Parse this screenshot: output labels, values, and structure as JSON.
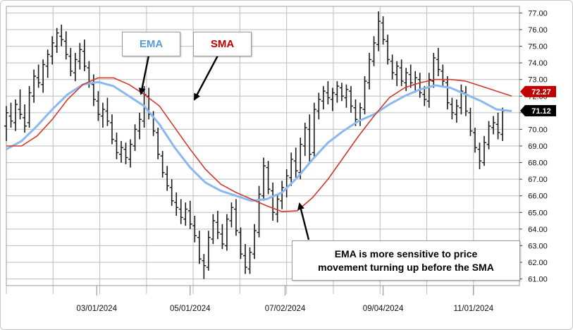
{
  "chart_data": {
    "type": "line",
    "title": "",
    "xlabel": "",
    "ylabel": "",
    "ylim": [
      60.6,
      77.4
    ],
    "y_ticks": [
      "61.00",
      "62.00",
      "63.00",
      "64.00",
      "65.00",
      "66.00",
      "67.00",
      "68.00",
      "69.00",
      "70.00",
      "71.00",
      "72.00",
      "73.00",
      "74.00",
      "75.00",
      "76.00",
      "77.00"
    ],
    "x_tick_labels": [
      "03/01/2024",
      "05/01/2024",
      "07/02/2024",
      "09/04/2024",
      "11/01/2024"
    ],
    "x_tick_days": [
      59,
      120,
      182,
      246,
      305
    ],
    "x_range_days": [
      0,
      335
    ],
    "grid": true,
    "price_bars": [
      [
        0,
        70.2,
        71.4,
        69.3,
        71.0
      ],
      [
        3,
        70.8,
        71.6,
        70.1,
        70.5
      ],
      [
        6,
        70.4,
        71.8,
        69.9,
        71.5
      ],
      [
        9,
        71.2,
        72.4,
        70.6,
        70.9
      ],
      [
        12,
        70.7,
        71.5,
        69.8,
        70.2
      ],
      [
        15,
        70.4,
        72.6,
        70.1,
        72.2
      ],
      [
        18,
        72.0,
        73.6,
        71.6,
        73.2
      ],
      [
        21,
        73.1,
        73.9,
        72.5,
        72.8
      ],
      [
        24,
        72.7,
        74.2,
        72.2,
        73.9
      ],
      [
        27,
        73.8,
        74.8,
        73.1,
        74.5
      ],
      [
        30,
        74.4,
        75.6,
        73.9,
        75.2
      ],
      [
        33,
        75.0,
        76.1,
        74.6,
        75.8
      ],
      [
        36,
        75.6,
        76.3,
        75.0,
        75.4
      ],
      [
        39,
        75.3,
        75.9,
        74.2,
        74.5
      ],
      [
        42,
        74.4,
        74.9,
        73.2,
        73.5
      ],
      [
        45,
        73.4,
        74.6,
        72.9,
        74.2
      ],
      [
        48,
        74.1,
        75.2,
        73.6,
        74.8
      ],
      [
        51,
        74.7,
        75.4,
        73.5,
        73.8
      ],
      [
        54,
        73.7,
        74.1,
        72.5,
        72.8
      ],
      [
        57,
        72.7,
        73.3,
        71.4,
        71.8
      ],
      [
        60,
        71.7,
        72.3,
        70.5,
        70.9
      ],
      [
        63,
        70.8,
        71.6,
        70.1,
        71.2
      ],
      [
        66,
        71.1,
        71.9,
        70.2,
        70.5
      ],
      [
        69,
        70.4,
        70.9,
        69.1,
        69.4
      ],
      [
        72,
        69.3,
        69.8,
        68.2,
        68.6
      ],
      [
        75,
        68.5,
        69.3,
        68.0,
        68.9
      ],
      [
        78,
        68.8,
        69.2,
        67.9,
        68.3
      ],
      [
        81,
        68.2,
        69.4,
        67.7,
        69.1
      ],
      [
        84,
        69.0,
        70.3,
        68.7,
        70.0
      ],
      [
        87,
        69.9,
        71.0,
        69.4,
        70.6
      ],
      [
        90,
        70.5,
        72.6,
        70.1,
        72.1
      ],
      [
        93,
        72.0,
        72.5,
        70.6,
        70.9
      ],
      [
        96,
        70.8,
        71.1,
        69.6,
        69.9
      ],
      [
        99,
        69.8,
        70.1,
        68.2,
        68.5
      ],
      [
        102,
        68.4,
        68.7,
        67.1,
        67.4
      ],
      [
        105,
        67.3,
        67.8,
        66.3,
        66.6
      ],
      [
        108,
        66.5,
        67.0,
        65.4,
        65.7
      ],
      [
        111,
        65.6,
        66.2,
        64.8,
        65.3
      ],
      [
        114,
        65.2,
        65.8,
        64.3,
        64.7
      ],
      [
        117,
        64.6,
        65.6,
        64.2,
        65.2
      ],
      [
        120,
        65.1,
        65.7,
        64.0,
        64.3
      ],
      [
        123,
        64.2,
        64.8,
        63.2,
        63.6
      ],
      [
        126,
        63.5,
        63.9,
        61.9,
        62.2
      ],
      [
        129,
        62.1,
        62.5,
        61.0,
        61.8
      ],
      [
        132,
        61.7,
        63.9,
        61.5,
        63.5
      ],
      [
        135,
        63.4,
        64.9,
        63.1,
        64.5
      ],
      [
        138,
        64.4,
        65.1,
        63.4,
        63.8
      ],
      [
        141,
        63.7,
        64.3,
        62.8,
        63.1
      ],
      [
        144,
        63.0,
        64.9,
        62.7,
        64.6
      ],
      [
        147,
        64.5,
        65.6,
        64.1,
        65.3
      ],
      [
        150,
        65.2,
        65.8,
        63.6,
        63.9
      ],
      [
        153,
        63.8,
        64.1,
        62.2,
        62.5
      ],
      [
        156,
        62.4,
        63.1,
        61.3,
        61.7
      ],
      [
        159,
        61.6,
        62.9,
        61.3,
        62.6
      ],
      [
        162,
        62.5,
        64.3,
        62.2,
        63.9
      ],
      [
        165,
        63.8,
        66.6,
        63.5,
        66.1
      ],
      [
        168,
        66.0,
        68.3,
        65.7,
        67.8
      ],
      [
        171,
        67.7,
        68.1,
        66.1,
        66.4
      ],
      [
        174,
        66.3,
        66.8,
        64.5,
        65.0
      ],
      [
        177,
        64.9,
        66.1,
        64.4,
        65.8
      ],
      [
        180,
        65.7,
        66.9,
        65.2,
        66.5
      ],
      [
        183,
        66.4,
        67.6,
        65.9,
        67.2
      ],
      [
        186,
        67.1,
        68.6,
        66.6,
        68.2
      ],
      [
        189,
        68.1,
        68.9,
        67.1,
        67.5
      ],
      [
        192,
        67.4,
        69.5,
        67.0,
        69.1
      ],
      [
        195,
        69.0,
        70.4,
        68.4,
        70.1
      ],
      [
        198,
        70.0,
        70.9,
        68.0,
        68.5
      ],
      [
        201,
        68.6,
        71.6,
        68.3,
        71.2
      ],
      [
        204,
        71.1,
        72.2,
        70.6,
        71.8
      ],
      [
        207,
        71.7,
        72.6,
        71.2,
        72.3
      ],
      [
        210,
        72.2,
        72.9,
        71.5,
        71.9
      ],
      [
        213,
        71.8,
        72.5,
        71.1,
        72.2
      ],
      [
        216,
        72.1,
        72.9,
        71.6,
        72.6
      ],
      [
        219,
        72.5,
        72.8,
        71.7,
        72.0
      ],
      [
        222,
        71.9,
        72.7,
        71.3,
        72.4
      ],
      [
        225,
        72.3,
        72.6,
        71.0,
        71.4
      ],
      [
        228,
        71.3,
        71.8,
        70.2,
        70.6
      ],
      [
        231,
        70.5,
        71.6,
        70.2,
        71.3
      ],
      [
        234,
        71.2,
        73.2,
        70.9,
        72.9
      ],
      [
        237,
        72.8,
        74.6,
        72.4,
        74.2
      ],
      [
        240,
        74.1,
        75.6,
        73.8,
        75.2
      ],
      [
        243,
        75.1,
        77.1,
        74.7,
        76.5
      ],
      [
        246,
        76.4,
        76.8,
        75.1,
        75.4
      ],
      [
        249,
        75.3,
        75.7,
        73.9,
        74.2
      ],
      [
        252,
        74.1,
        74.5,
        73.0,
        73.4
      ],
      [
        255,
        73.3,
        74.1,
        72.6,
        73.8
      ],
      [
        258,
        73.7,
        74.2,
        72.6,
        72.9
      ],
      [
        261,
        72.8,
        73.7,
        72.3,
        73.4
      ],
      [
        264,
        73.3,
        73.9,
        72.5,
        72.8
      ],
      [
        267,
        72.7,
        73.5,
        72.2,
        73.1
      ],
      [
        270,
        73.0,
        73.4,
        71.9,
        72.2
      ],
      [
        273,
        72.1,
        72.6,
        71.4,
        71.8
      ],
      [
        276,
        71.7,
        73.4,
        71.3,
        73.0
      ],
      [
        279,
        72.9,
        74.6,
        72.5,
        74.3
      ],
      [
        282,
        74.2,
        74.9,
        73.2,
        73.6
      ],
      [
        285,
        73.5,
        73.9,
        72.6,
        72.9
      ],
      [
        288,
        72.8,
        73.2,
        71.2,
        71.6
      ],
      [
        291,
        71.5,
        71.9,
        70.6,
        71.0
      ],
      [
        294,
        70.9,
        71.8,
        70.4,
        71.4
      ],
      [
        297,
        71.3,
        72.7,
        70.9,
        72.3
      ],
      [
        300,
        72.2,
        72.6,
        70.8,
        71.1
      ],
      [
        303,
        71.0,
        71.3,
        69.6,
        69.9
      ],
      [
        306,
        69.8,
        70.1,
        68.6,
        68.9
      ],
      [
        309,
        68.8,
        69.2,
        67.6,
        68.1
      ],
      [
        312,
        68.0,
        69.6,
        67.8,
        69.2
      ],
      [
        315,
        69.1,
        70.5,
        68.8,
        70.2
      ],
      [
        318,
        70.1,
        70.8,
        69.7,
        70.4
      ],
      [
        321,
        70.3,
        71.0,
        69.4,
        69.8
      ],
      [
        324,
        69.7,
        71.3,
        69.3,
        71.1
      ]
    ],
    "series": [
      {
        "name": "EMA",
        "color": "#8ab8f0",
        "points": [
          [
            0,
            68.8
          ],
          [
            10,
            69.3
          ],
          [
            20,
            70.2
          ],
          [
            30,
            71.2
          ],
          [
            40,
            72.1
          ],
          [
            50,
            72.7
          ],
          [
            60,
            72.85
          ],
          [
            70,
            72.6
          ],
          [
            80,
            72.0
          ],
          [
            90,
            71.4
          ],
          [
            100,
            70.3
          ],
          [
            110,
            68.9
          ],
          [
            120,
            67.7
          ],
          [
            130,
            66.8
          ],
          [
            140,
            66.3
          ],
          [
            150,
            66.0
          ],
          [
            160,
            65.7
          ],
          [
            170,
            65.8
          ],
          [
            180,
            66.2
          ],
          [
            190,
            67.1
          ],
          [
            200,
            68.2
          ],
          [
            210,
            69.2
          ],
          [
            220,
            69.9
          ],
          [
            230,
            70.5
          ],
          [
            240,
            70.9
          ],
          [
            250,
            71.5
          ],
          [
            260,
            72.0
          ],
          [
            270,
            72.4
          ],
          [
            280,
            72.65
          ],
          [
            290,
            72.5
          ],
          [
            300,
            72.1
          ],
          [
            310,
            71.7
          ],
          [
            320,
            71.2
          ],
          [
            330,
            71.1
          ]
        ]
      },
      {
        "name": "SMA",
        "color": "#d03a2e",
        "points": [
          [
            0,
            69.0
          ],
          [
            10,
            69.0
          ],
          [
            20,
            69.6
          ],
          [
            30,
            70.6
          ],
          [
            40,
            71.8
          ],
          [
            50,
            72.7
          ],
          [
            60,
            73.1
          ],
          [
            70,
            73.1
          ],
          [
            80,
            72.7
          ],
          [
            90,
            72.1
          ],
          [
            100,
            71.4
          ],
          [
            110,
            70.1
          ],
          [
            120,
            68.8
          ],
          [
            130,
            67.6
          ],
          [
            140,
            66.7
          ],
          [
            150,
            66.2
          ],
          [
            160,
            65.8
          ],
          [
            170,
            65.4
          ],
          [
            180,
            65.05
          ],
          [
            190,
            65.1
          ],
          [
            200,
            65.9
          ],
          [
            210,
            67.0
          ],
          [
            220,
            68.3
          ],
          [
            230,
            69.6
          ],
          [
            240,
            70.8
          ],
          [
            250,
            71.9
          ],
          [
            260,
            72.5
          ],
          [
            270,
            72.8
          ],
          [
            280,
            73.0
          ],
          [
            290,
            73.0
          ],
          [
            300,
            72.9
          ],
          [
            310,
            72.6
          ],
          [
            320,
            72.3
          ],
          [
            330,
            72.0
          ]
        ]
      }
    ],
    "value_labels": [
      {
        "text": "72.27",
        "value": 72.27,
        "color": "#c00000"
      },
      {
        "text": "71.12",
        "value": 71.12,
        "color": "#000000"
      }
    ],
    "annotations": {
      "ema": "EMA",
      "sma": "SMA",
      "note_line1": "EMA is more sensitive to price",
      "note_line2": "movement turning up before the SMA"
    },
    "colors": {
      "ema_label": "#5b9bd5",
      "sma_label": "#c00000",
      "bars": "#1a1a1a",
      "grid": "#bdbdbd"
    }
  }
}
